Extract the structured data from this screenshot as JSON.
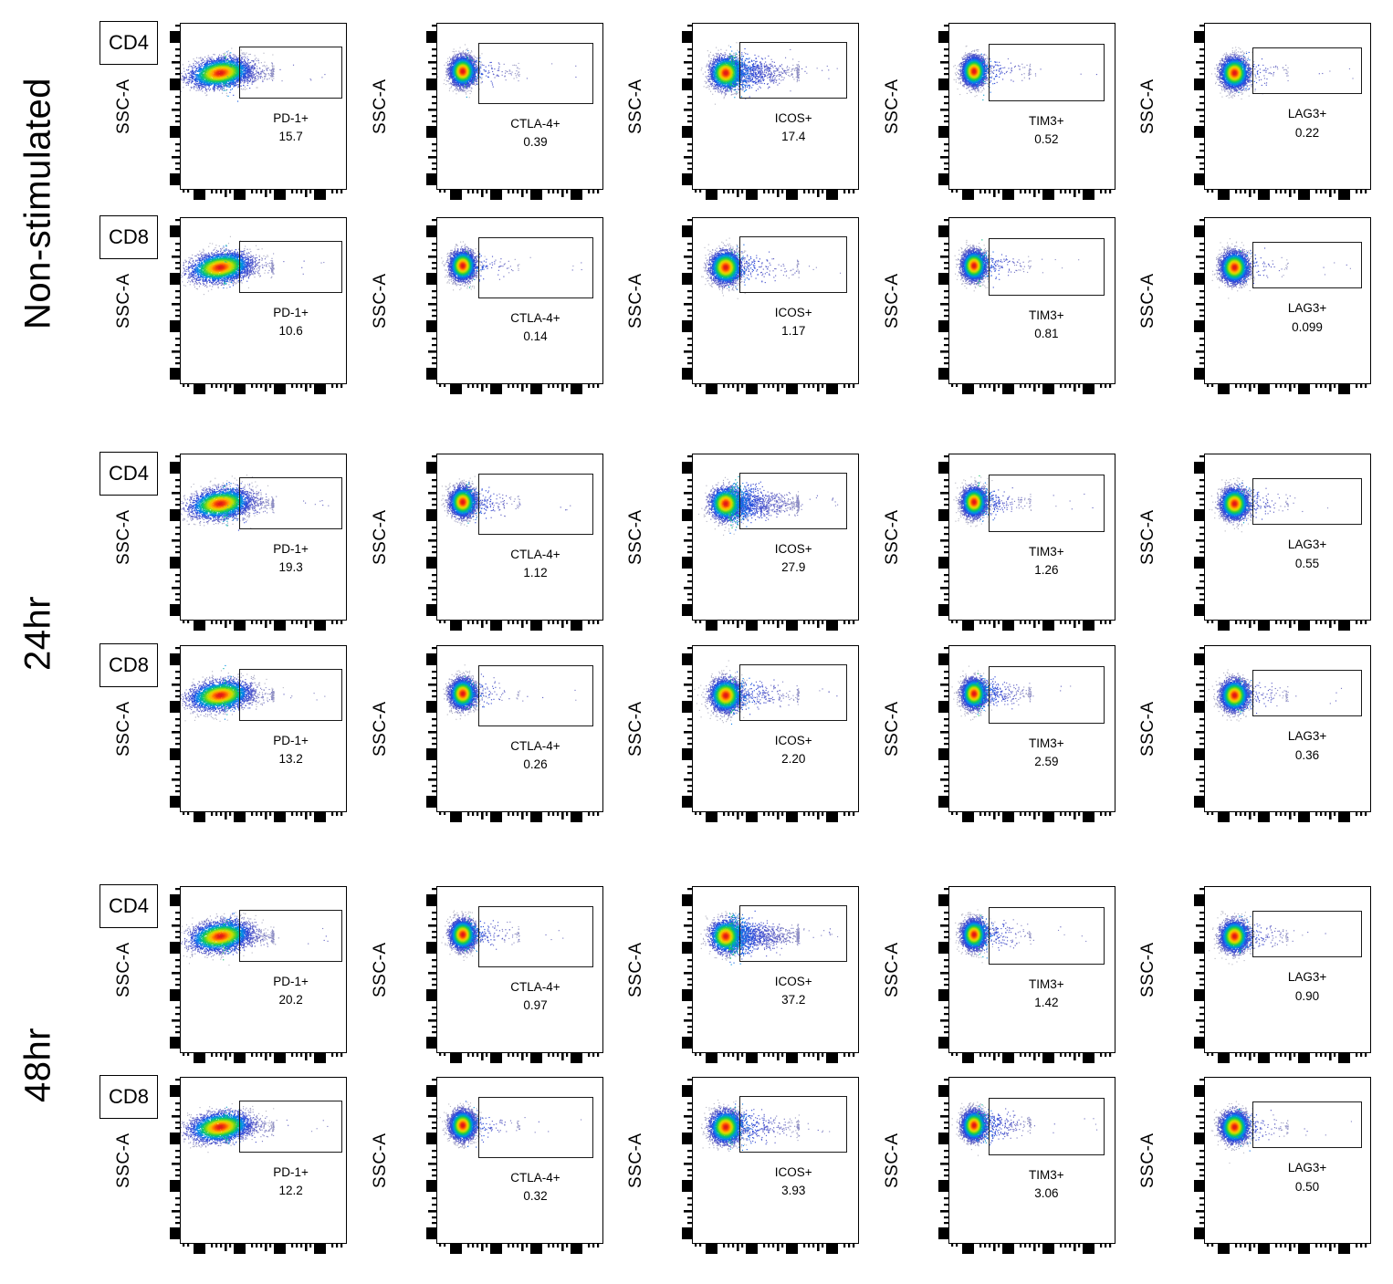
{
  "chart_data": {
    "type": "scatter",
    "subtype": "flow-cytometry-pseudocolor-density",
    "y_axis": "SSC-A",
    "x_axis_label": "",
    "tick_style": "log-decade-ticks-no-numeric-labels",
    "x_markers": [
      "PD-1",
      "CTLA-4",
      "ICOS",
      "TIM3",
      "LAG3"
    ],
    "colors": {
      "density_scale": [
        "#bcbcc6",
        "#6060c4",
        "#2846dc",
        "#008cec",
        "#00c378",
        "#5ad228",
        "#c8e100",
        "#ffb400",
        "#ff6400",
        "#e11919"
      ],
      "axis": "#000000",
      "background": "#ffffff"
    },
    "columns": [
      {
        "marker": "PD-1",
        "gate": {
          "x0": 0.355,
          "x1": 0.985,
          "y0": 0.14,
          "y1": 0.455
        },
        "blob": {
          "cx": 0.24,
          "cy": 0.3,
          "sx": 0.09,
          "sy": 0.042,
          "tilt": -8,
          "tail_len": 0.3
        }
      },
      {
        "marker": "CTLA-4",
        "gate": {
          "x0": 0.25,
          "x1": 0.95,
          "y0": 0.115,
          "y1": 0.49
        },
        "blob": {
          "cx": 0.155,
          "cy": 0.29,
          "sx": 0.037,
          "sy": 0.043,
          "tilt": 0,
          "tail_len": 0.32
        }
      },
      {
        "marker": "ICOS",
        "gate": {
          "x0": 0.285,
          "x1": 0.94,
          "y0": 0.11,
          "y1": 0.455
        },
        "blob": {
          "cx": 0.2,
          "cy": 0.3,
          "sx": 0.045,
          "sy": 0.047,
          "tilt": 0,
          "tail_len": 0.42
        }
      },
      {
        "marker": "TIM3",
        "gate": {
          "x0": 0.242,
          "x1": 0.945,
          "y0": 0.12,
          "y1": 0.47
        },
        "blob": {
          "cx": 0.15,
          "cy": 0.29,
          "sx": 0.035,
          "sy": 0.043,
          "tilt": 0,
          "tail_len": 0.32
        }
      },
      {
        "marker": "LAG3",
        "gate": {
          "x0": 0.29,
          "x1": 0.955,
          "y0": 0.145,
          "y1": 0.43
        },
        "blob": {
          "cx": 0.18,
          "cy": 0.3,
          "sx": 0.04,
          "sy": 0.045,
          "tilt": 0,
          "tail_len": 0.3
        }
      }
    ],
    "groups": [
      {
        "condition": "Non-stimulated",
        "populations": [
          {
            "cell": "CD4",
            "gates": [
              {
                "label": "PD-1+",
                "percent": "15.7",
                "tail": 0.16
              },
              {
                "label": "CTLA-4+",
                "percent": "0.39",
                "tail": 0.05
              },
              {
                "label": "ICOS+",
                "percent": "17.4",
                "tail": 0.3
              },
              {
                "label": "TIM3+",
                "percent": "0.52",
                "tail": 0.05
              },
              {
                "label": "LAG3+",
                "percent": "0.22",
                "tail": 0.04
              }
            ]
          },
          {
            "cell": "CD8",
            "gates": [
              {
                "label": "PD-1+",
                "percent": "10.6",
                "tail": 0.14
              },
              {
                "label": "CTLA-4+",
                "percent": "0.14",
                "tail": 0.03
              },
              {
                "label": "ICOS+",
                "percent": "1.17",
                "tail": 0.07
              },
              {
                "label": "TIM3+",
                "percent": "0.81",
                "tail": 0.06
              },
              {
                "label": "LAG3+",
                "percent": "0.099",
                "tail": 0.03
              }
            ]
          }
        ]
      },
      {
        "condition": "24hr",
        "populations": [
          {
            "cell": "CD4",
            "gates": [
              {
                "label": "PD-1+",
                "percent": "19.3",
                "tail": 0.18
              },
              {
                "label": "CTLA-4+",
                "percent": "1.12",
                "tail": 0.07
              },
              {
                "label": "ICOS+",
                "percent": "27.9",
                "tail": 0.38
              },
              {
                "label": "TIM3+",
                "percent": "1.26",
                "tail": 0.07
              },
              {
                "label": "LAG3+",
                "percent": "0.55",
                "tail": 0.05
              }
            ]
          },
          {
            "cell": "CD8",
            "gates": [
              {
                "label": "PD-1+",
                "percent": "13.2",
                "tail": 0.15
              },
              {
                "label": "CTLA-4+",
                "percent": "0.26",
                "tail": 0.04
              },
              {
                "label": "ICOS+",
                "percent": "2.20",
                "tail": 0.1
              },
              {
                "label": "TIM3+",
                "percent": "2.59",
                "tail": 0.11
              },
              {
                "label": "LAG3+",
                "percent": "0.36",
                "tail": 0.05
              }
            ]
          }
        ]
      },
      {
        "condition": "48hr",
        "populations": [
          {
            "cell": "CD4",
            "gates": [
              {
                "label": "PD-1+",
                "percent": "20.2",
                "tail": 0.18
              },
              {
                "label": "CTLA-4+",
                "percent": "0.97",
                "tail": 0.06
              },
              {
                "label": "ICOS+",
                "percent": "37.2",
                "tail": 0.42
              },
              {
                "label": "TIM3+",
                "percent": "1.42",
                "tail": 0.08
              },
              {
                "label": "LAG3+",
                "percent": "0.90",
                "tail": 0.06
              }
            ]
          },
          {
            "cell": "CD8",
            "gates": [
              {
                "label": "PD-1+",
                "percent": "12.2",
                "tail": 0.15
              },
              {
                "label": "CTLA-4+",
                "percent": "0.32",
                "tail": 0.04
              },
              {
                "label": "ICOS+",
                "percent": "3.93",
                "tail": 0.13
              },
              {
                "label": "TIM3+",
                "percent": "3.06",
                "tail": 0.12
              },
              {
                "label": "LAG3+",
                "percent": "0.50",
                "tail": 0.05
              }
            ]
          }
        ]
      }
    ]
  }
}
